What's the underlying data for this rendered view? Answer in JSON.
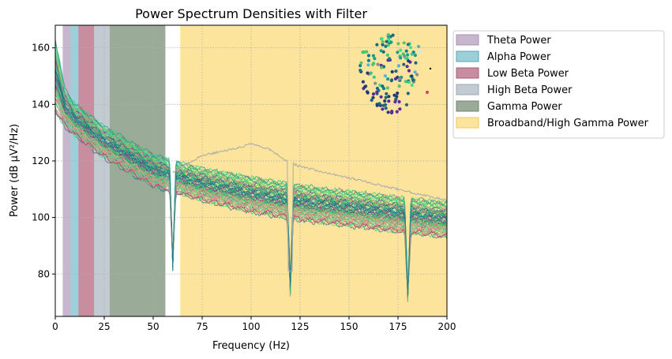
{
  "chart_data": {
    "type": "line",
    "title": "Power Spectrum Densities with Filter",
    "xlabel": "Frequency (Hz)",
    "ylabel": "Power (dB μV²/Hz)",
    "xlim": [
      0,
      200
    ],
    "ylim": [
      65,
      168
    ],
    "xticks": [
      0,
      25,
      50,
      75,
      100,
      125,
      150,
      175,
      200
    ],
    "yticks": [
      80,
      100,
      120,
      140,
      160
    ],
    "grid": true,
    "grid_style": "dotted",
    "legend_placement": "outside-right",
    "bands": [
      {
        "name": "Theta Power",
        "range": [
          4,
          8
        ],
        "color": "#c8b6cf"
      },
      {
        "name": "Alpha Power",
        "range": [
          8,
          12
        ],
        "color": "#9ccfd8"
      },
      {
        "name": "Low Beta Power",
        "range": [
          12,
          20
        ],
        "color": "#c98da0"
      },
      {
        "name": "High Beta Power",
        "range": [
          20,
          28
        ],
        "color": "#c3cbd2"
      },
      {
        "name": "Gamma Power",
        "range": [
          28,
          56
        ],
        "color": "#9aab98"
      },
      {
        "name": "Broadband/High Gamma Power",
        "range": [
          64,
          200
        ],
        "color": "#fde49c"
      }
    ],
    "notches_hz": [
      60,
      120,
      180
    ],
    "series_summary": {
      "description_values": "dense overlay of many channel PSDs; approximate envelope",
      "x": [
        0,
        5,
        10,
        25,
        50,
        75,
        100,
        125,
        150,
        175,
        200
      ],
      "y_upper": [
        163,
        145,
        140,
        132,
        122,
        117,
        114,
        111,
        109,
        107,
        105
      ],
      "y_median": [
        155,
        140,
        136,
        127,
        117,
        112,
        108,
        105,
        103,
        101,
        100
      ],
      "y_lower": [
        137,
        132,
        129,
        121,
        111,
        106,
        102,
        99,
        97,
        95,
        93
      ],
      "notch_min": [
        81,
        72,
        70
      ],
      "outlier_trace": {
        "x": [
          75,
          90,
          100,
          110,
          118
        ],
        "y": [
          122,
          124,
          126,
          124,
          120
        ],
        "color": "#aaaaaa"
      }
    },
    "colors": [
      "#2ecf7e",
      "#3bd56f",
      "#1e9b8a",
      "#0e7b8f",
      "#19687f",
      "#5ec262",
      "#7fe07c",
      "#3ee08a",
      "#a2367e",
      "#d6436b",
      "#e29386",
      "#5b2a9e",
      "#8c8c8c",
      "#aaaaaa"
    ]
  }
}
